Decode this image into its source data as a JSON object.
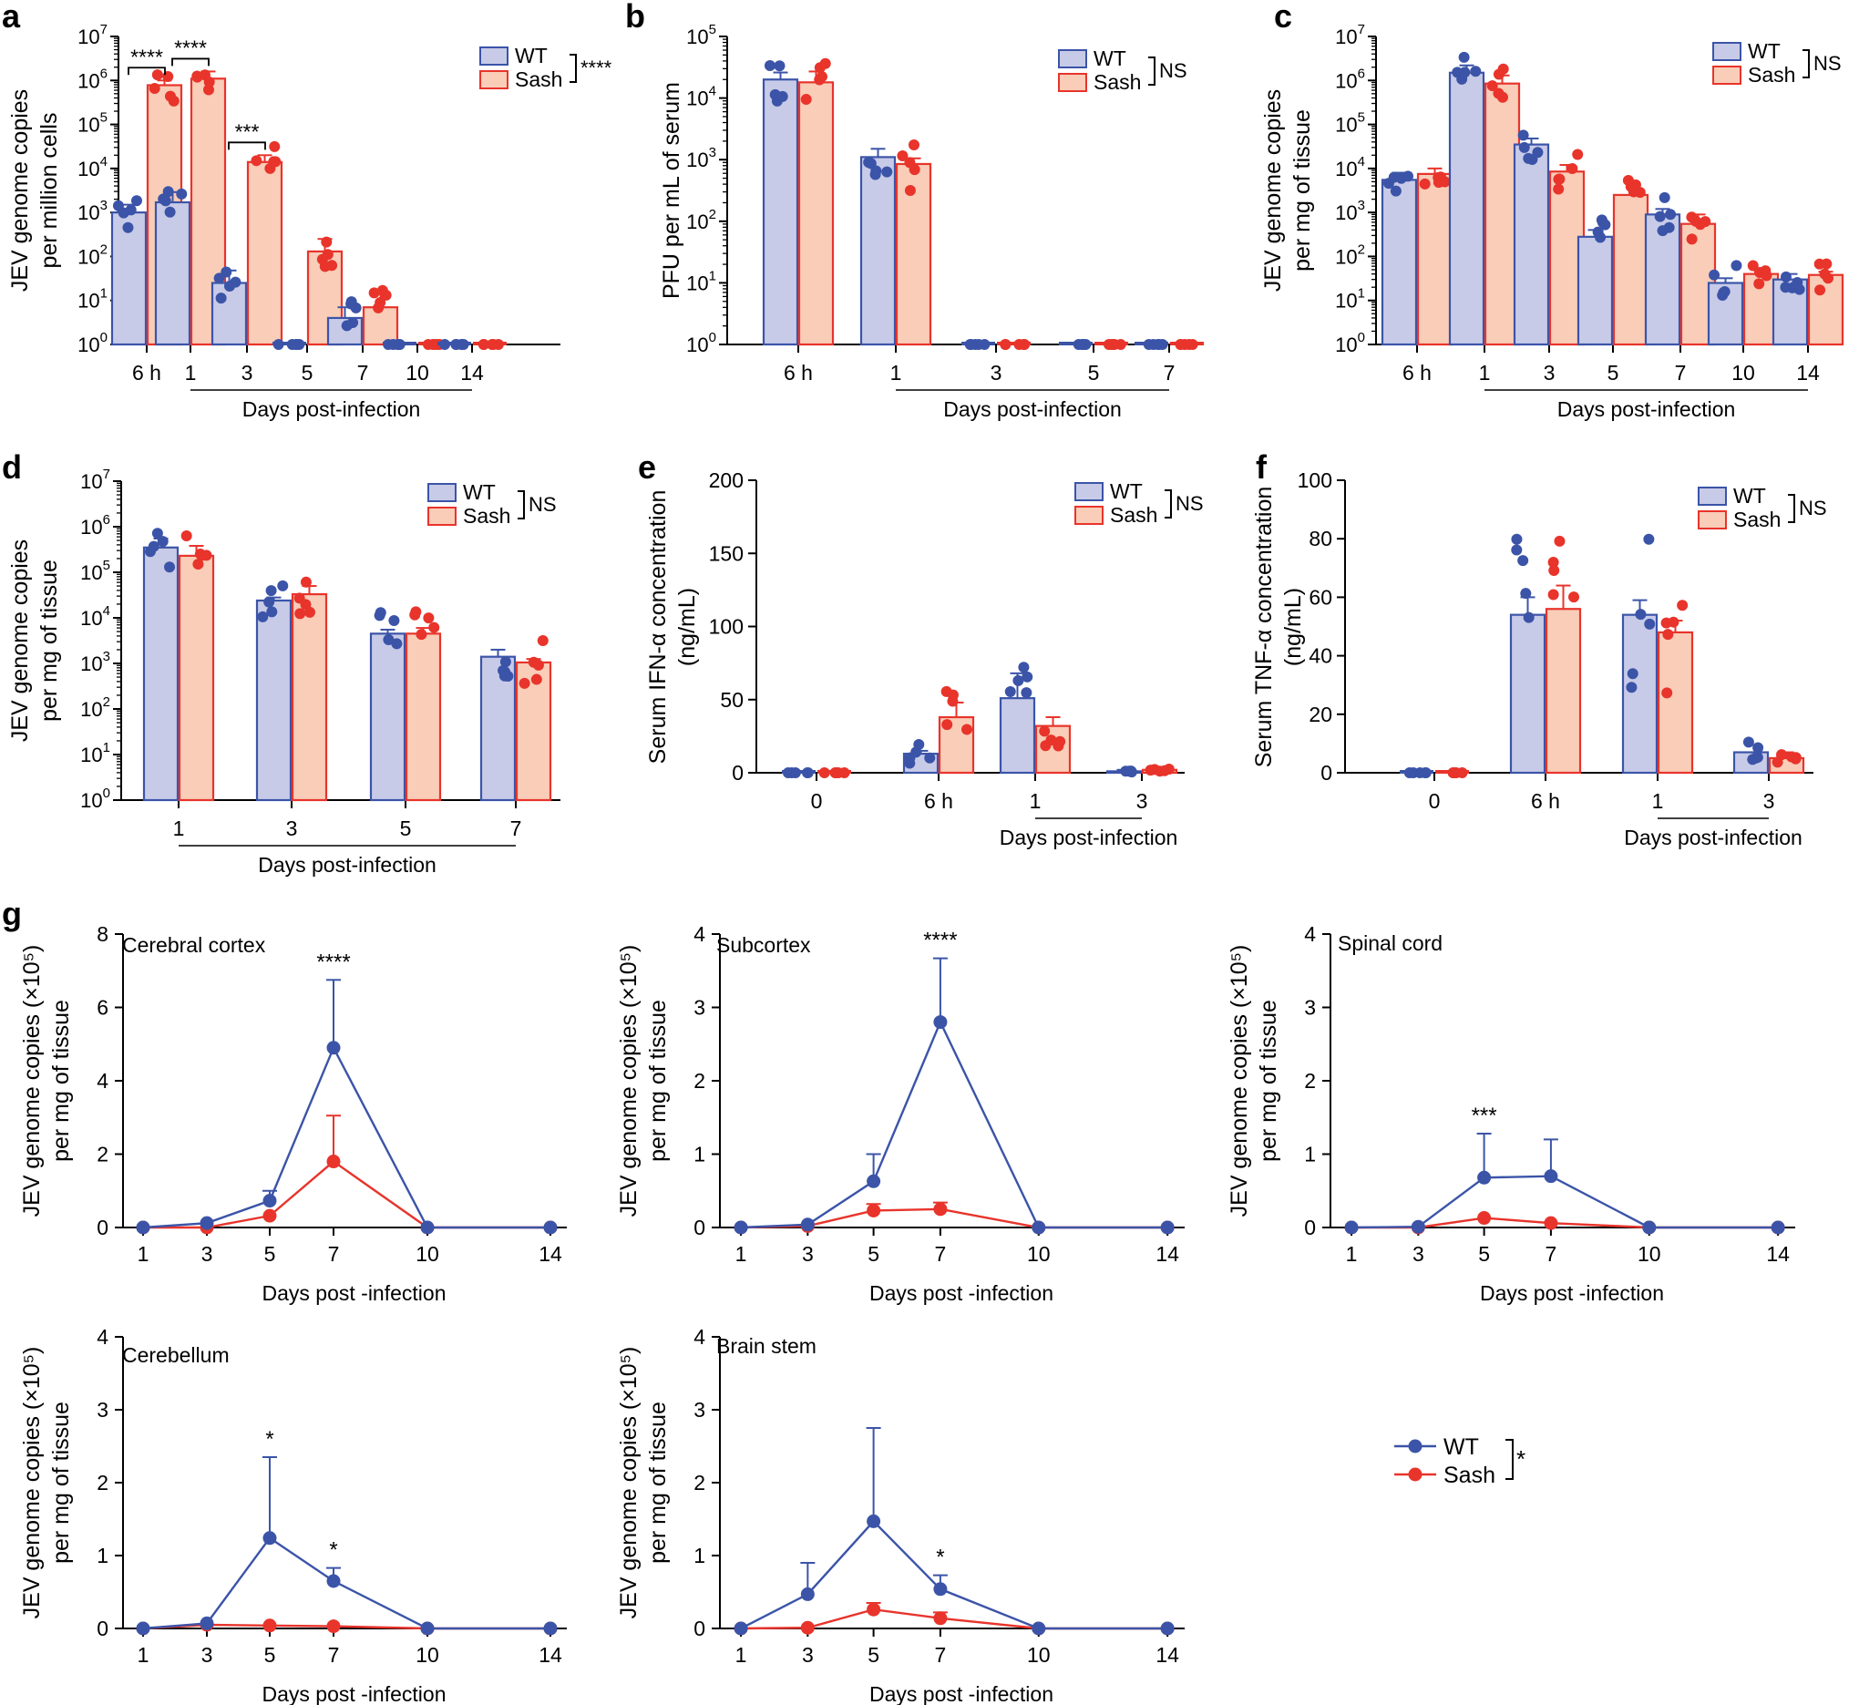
{
  "colors": {
    "wt": "#3b54a8",
    "wt_fill": "#c8cbe8",
    "sash": "#e8342b",
    "sash_fill": "#f9cdb8",
    "axis": "#000000"
  },
  "legend_labels": {
    "wt": "WT",
    "sash": "Sash"
  },
  "chart_data": [
    {
      "panel": "a",
      "type": "bar",
      "scale": "log",
      "ylabel": [
        "JEV genome copies",
        "per million cells"
      ],
      "ylim": [
        1,
        10000000
      ],
      "categories": [
        "6 h",
        "1",
        "3",
        "5",
        "7",
        "10",
        "14"
      ],
      "xgroup_label": "Days post-infection",
      "legend_stat": "****",
      "series": [
        {
          "name": "WT",
          "values": [
            1000,
            1700,
            25,
            1,
            4,
            1,
            1
          ],
          "errors": [
            1500,
            2900,
            48,
            1,
            7,
            1,
            1
          ]
        },
        {
          "name": "Sash",
          "values": [
            780000,
            1100000,
            14000,
            130,
            7,
            1,
            1
          ],
          "errors": [
            1000000,
            1600000,
            20000,
            250,
            14,
            1,
            1
          ]
        }
      ],
      "significance": [
        {
          "category": "6 h",
          "label": "****"
        },
        {
          "category": "1",
          "label": "****"
        },
        {
          "category": "3",
          "label": "***"
        }
      ]
    },
    {
      "panel": "b",
      "type": "bar",
      "scale": "log",
      "ylabel": [
        "PFU per mL of serum"
      ],
      "ylim": [
        1,
        100000
      ],
      "categories": [
        "6 h",
        "1",
        "3",
        "5",
        "7"
      ],
      "xgroup_label": "Days post-infection",
      "legend_stat": "NS",
      "series": [
        {
          "name": "WT",
          "values": [
            20000,
            1100,
            1,
            1,
            1
          ],
          "errors": [
            26000,
            1500,
            1,
            1,
            1
          ]
        },
        {
          "name": "Sash",
          "values": [
            18000,
            850,
            1,
            1,
            1
          ],
          "errors": [
            27000,
            1050,
            1,
            1,
            1
          ]
        }
      ]
    },
    {
      "panel": "c",
      "type": "bar",
      "scale": "log",
      "ylabel": [
        "JEV genome copies",
        "per mg of tissue"
      ],
      "ylim": [
        1,
        10000000
      ],
      "categories": [
        "6 h",
        "1",
        "3",
        "5",
        "7",
        "10",
        "14"
      ],
      "xgroup_label": "Days post-infection",
      "legend_stat": "NS",
      "series": [
        {
          "name": "WT",
          "values": [
            5500,
            1500000,
            35000,
            280,
            900,
            25,
            30
          ],
          "errors": [
            8000,
            2200000,
            48000,
            400,
            1200,
            32,
            40
          ]
        },
        {
          "name": "Sash",
          "values": [
            7500,
            850000,
            8500,
            2500,
            550,
            40,
            38
          ],
          "errors": [
            10000,
            1300000,
            12000,
            5000,
            900,
            48,
            45
          ]
        }
      ]
    },
    {
      "panel": "d",
      "type": "bar",
      "scale": "log",
      "ylabel": [
        "JEV genome copies",
        "per mg of tissue"
      ],
      "ylim": [
        1,
        10000000
      ],
      "categories": [
        "1",
        "3",
        "5",
        "7"
      ],
      "xgroup_label": "Days post-infection",
      "legend_stat": "NS",
      "series": [
        {
          "name": "WT",
          "values": [
            350000,
            24000,
            4500,
            1400
          ],
          "errors": [
            550000,
            28000,
            5500,
            2000
          ]
        },
        {
          "name": "Sash",
          "values": [
            230000,
            33000,
            4500,
            1050
          ],
          "errors": [
            380000,
            50000,
            6000,
            1250
          ]
        }
      ]
    },
    {
      "panel": "e",
      "type": "bar",
      "scale": "linear",
      "ylabel": [
        "Serum IFN-α concentration",
        "(ng/mL)"
      ],
      "ylim": [
        0,
        200
      ],
      "yticks": [
        0,
        50,
        100,
        150,
        200
      ],
      "categories": [
        "0",
        "6 h",
        "1",
        "3"
      ],
      "xgroup_label": "Days post-infection",
      "legend_stat": "NS",
      "series": [
        {
          "name": "WT",
          "values": [
            0,
            13,
            51,
            1
          ],
          "errors": [
            0,
            15,
            68,
            2
          ]
        },
        {
          "name": "Sash",
          "values": [
            0,
            38,
            32,
            2
          ],
          "errors": [
            0,
            48,
            38,
            3
          ]
        }
      ]
    },
    {
      "panel": "f",
      "type": "bar",
      "scale": "linear",
      "ylabel": [
        "Serum TNF-α concentration",
        "(ng/mL)"
      ],
      "ylim": [
        0,
        100
      ],
      "yticks": [
        0,
        20,
        40,
        60,
        80,
        100
      ],
      "categories": [
        "0",
        "6 h",
        "1",
        "3"
      ],
      "xgroup_label": "Days post-infection",
      "legend_stat": "NS",
      "series": [
        {
          "name": "WT",
          "values": [
            0,
            54,
            54,
            7
          ],
          "errors": [
            0,
            60,
            59,
            7
          ]
        },
        {
          "name": "Sash",
          "values": [
            0,
            56,
            48,
            5
          ],
          "errors": [
            0,
            64,
            52,
            7
          ]
        }
      ]
    },
    {
      "panel": "g",
      "type": "line",
      "title": "Cerebral cortex",
      "ylabel": [
        "JEV genome copies (×10⁵)",
        "per mg of tissue"
      ],
      "xlabel": "Days post -infection",
      "x": [
        1,
        3,
        5,
        7,
        10,
        14
      ],
      "ylim": [
        0,
        8
      ],
      "yticks": [
        0,
        2,
        4,
        6,
        8
      ],
      "series": [
        {
          "name": "WT",
          "values": [
            0,
            0.12,
            0.73,
            4.9,
            0,
            0
          ],
          "errors": [
            0,
            0.12,
            1.0,
            6.75,
            0,
            0
          ]
        },
        {
          "name": "Sash",
          "values": [
            0,
            0,
            0.32,
            1.8,
            0,
            0
          ],
          "errors": [
            0,
            0,
            0.32,
            3.05,
            0,
            0
          ]
        }
      ],
      "significance": [
        {
          "x": 7,
          "label": "****"
        }
      ]
    },
    {
      "panel": "",
      "type": "line",
      "title": "Subcortex",
      "ylabel": [
        "JEV genome copies (×10⁵)",
        "per mg of tissue"
      ],
      "xlabel": "Days post -infection",
      "x": [
        1,
        3,
        5,
        7,
        10,
        14
      ],
      "ylim": [
        0,
        4
      ],
      "yticks": [
        0,
        1,
        2,
        3,
        4
      ],
      "series": [
        {
          "name": "WT",
          "values": [
            0,
            0.04,
            0.63,
            2.8,
            0,
            0
          ],
          "errors": [
            0,
            0.04,
            1.0,
            3.67,
            0,
            0
          ]
        },
        {
          "name": "Sash",
          "values": [
            0,
            0.02,
            0.23,
            0.25,
            0,
            0
          ],
          "errors": [
            0,
            0.02,
            0.32,
            0.34,
            0,
            0
          ]
        }
      ],
      "significance": [
        {
          "x": 7,
          "label": "****"
        }
      ]
    },
    {
      "panel": "",
      "type": "line",
      "title": "Spinal cord",
      "ylabel": [
        "JEV genome copies (×10⁵)",
        "per mg of tissue"
      ],
      "xlabel": "Days post -infection",
      "x": [
        1,
        3,
        5,
        7,
        10,
        14
      ],
      "ylim": [
        0,
        4
      ],
      "yticks": [
        0,
        1,
        2,
        3,
        4
      ],
      "series": [
        {
          "name": "WT",
          "values": [
            0,
            0.01,
            0.68,
            0.7,
            0,
            0
          ],
          "errors": [
            0,
            0.01,
            1.28,
            1.2,
            0,
            0
          ]
        },
        {
          "name": "Sash",
          "values": [
            0,
            0,
            0.13,
            0.06,
            0,
            0
          ],
          "errors": [
            0,
            0,
            0.13,
            0.06,
            0,
            0
          ]
        }
      ],
      "significance": [
        {
          "x": 5,
          "label": "***"
        }
      ]
    },
    {
      "panel": "",
      "type": "line",
      "title": "Cerebellum",
      "ylabel": [
        "JEV genome copies (×10⁵)",
        "per mg of tissue"
      ],
      "xlabel": "Days post -infection",
      "x": [
        1,
        3,
        5,
        7,
        10,
        14
      ],
      "ylim": [
        0,
        4
      ],
      "yticks": [
        0,
        1,
        2,
        3,
        4
      ],
      "series": [
        {
          "name": "WT",
          "values": [
            0,
            0.07,
            1.24,
            0.65,
            0,
            0
          ],
          "errors": [
            0,
            0.07,
            2.35,
            0.83,
            0,
            0
          ]
        },
        {
          "name": "Sash",
          "values": [
            0,
            0.05,
            0.04,
            0.03,
            0,
            0
          ],
          "errors": [
            0,
            0.05,
            0.04,
            0.03,
            0,
            0
          ]
        }
      ],
      "significance": [
        {
          "x": 5,
          "label": "*"
        },
        {
          "x": 7,
          "label": "*"
        }
      ]
    },
    {
      "panel": "",
      "type": "line",
      "title": "Brain stem",
      "ylabel": [
        "JEV genome copies (×10⁵)",
        "per mg of tissue"
      ],
      "xlabel": "Days post -infection",
      "x": [
        1,
        3,
        5,
        7,
        10,
        14
      ],
      "ylim": [
        0,
        4
      ],
      "yticks": [
        0,
        1,
        2,
        3,
        4
      ],
      "series": [
        {
          "name": "WT",
          "values": [
            0,
            0.47,
            1.47,
            0.54,
            0,
            0
          ],
          "errors": [
            0,
            0.9,
            2.75,
            0.73,
            0,
            0
          ]
        },
        {
          "name": "Sash",
          "values": [
            0,
            0.01,
            0.26,
            0.14,
            0,
            0
          ],
          "errors": [
            0,
            0.01,
            0.35,
            0.22,
            0,
            0
          ]
        }
      ],
      "significance": [
        {
          "x": 7,
          "label": "*"
        }
      ]
    }
  ],
  "line_legend": {
    "stat": "*"
  }
}
